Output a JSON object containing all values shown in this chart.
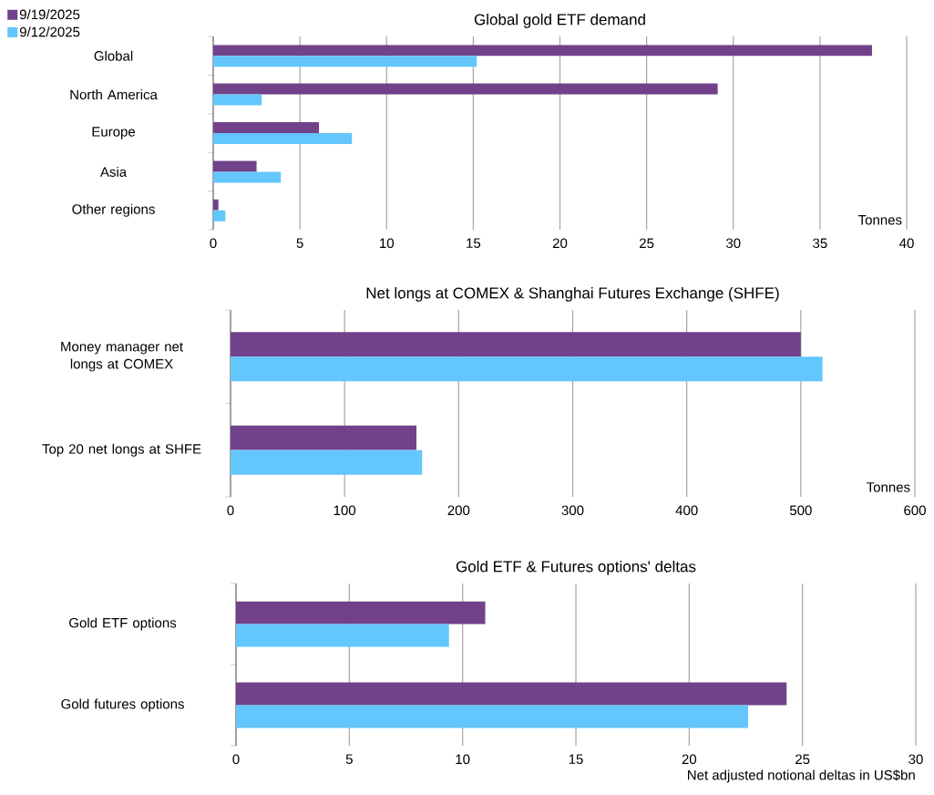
{
  "chart_data": [
    {
      "type": "bar",
      "orientation": "horizontal",
      "title": "Global gold ETF demand",
      "xlabel": "Tonnes",
      "categories": [
        "Global",
        "North America",
        "Europe",
        "Asia",
        "Other regions"
      ],
      "series": [
        {
          "name": "9/19/2025",
          "color": "#71418a",
          "values": [
            38.0,
            29.1,
            6.1,
            2.5,
            0.3
          ]
        },
        {
          "name": "9/12/2025",
          "color": "#63c6fc",
          "values": [
            15.2,
            2.8,
            8.0,
            3.9,
            0.7
          ]
        }
      ],
      "xlim": [
        0,
        40
      ],
      "xticks": [
        0,
        5,
        10,
        15,
        20,
        25,
        30,
        35,
        40
      ],
      "grid": "x",
      "legend": "top left"
    },
    {
      "type": "bar",
      "orientation": "horizontal",
      "title": "Net longs at COMEX & Shanghai Futures Exchange (SHFE)",
      "xlabel": "Tonnes",
      "categories": [
        "Money manager net longs at COMEX",
        "Top 20 net longs at SHFE"
      ],
      "series": [
        {
          "color": "#71418a",
          "values": [
            500,
            163
          ]
        },
        {
          "color": "#63c6fc",
          "values": [
            519,
            168
          ]
        }
      ],
      "xlim": [
        0,
        600
      ],
      "xticks": [
        0,
        100,
        200,
        300,
        400,
        500,
        600
      ],
      "grid": "x"
    },
    {
      "type": "bar",
      "orientation": "horizontal",
      "title": "Gold ETF & Futures options' deltas",
      "xlabel": "Net adjusted notional deltas in US$bn",
      "categories": [
        "Gold ETF options",
        "Gold futures options"
      ],
      "series": [
        {
          "color": "#71418a",
          "values": [
            11.0,
            24.3
          ]
        },
        {
          "color": "#63c6fc",
          "values": [
            9.4,
            22.6
          ]
        }
      ],
      "xlim": [
        0,
        30
      ],
      "xticks": [
        0,
        5,
        10,
        15,
        20,
        25,
        30
      ],
      "grid": "x"
    }
  ]
}
